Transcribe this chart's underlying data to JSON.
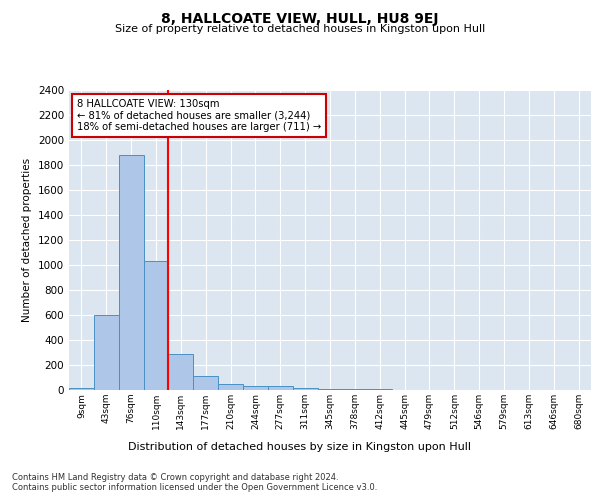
{
  "title": "8, HALLCOATE VIEW, HULL, HU8 9EJ",
  "subtitle": "Size of property relative to detached houses in Kingston upon Hull",
  "xlabel": "Distribution of detached houses by size in Kingston upon Hull",
  "ylabel": "Number of detached properties",
  "footer_line1": "Contains HM Land Registry data © Crown copyright and database right 2024.",
  "footer_line2": "Contains public sector information licensed under the Open Government Licence v3.0.",
  "bin_labels": [
    "9sqm",
    "43sqm",
    "76sqm",
    "110sqm",
    "143sqm",
    "177sqm",
    "210sqm",
    "244sqm",
    "277sqm",
    "311sqm",
    "345sqm",
    "378sqm",
    "412sqm",
    "445sqm",
    "479sqm",
    "512sqm",
    "546sqm",
    "579sqm",
    "613sqm",
    "646sqm",
    "680sqm"
  ],
  "bar_values": [
    20,
    600,
    1880,
    1030,
    290,
    115,
    50,
    35,
    30,
    20,
    10,
    5,
    5,
    3,
    3,
    2,
    2,
    2,
    1,
    1,
    0
  ],
  "bar_color": "#aec6e8",
  "bar_edge_color": "#4a90c4",
  "background_color": "#dce6f0",
  "grid_color": "#ffffff",
  "red_line_x": 3.5,
  "annotation_text": "8 HALLCOATE VIEW: 130sqm\n← 81% of detached houses are smaller (3,244)\n18% of semi-detached houses are larger (711) →",
  "annotation_box_color": "#ffffff",
  "annotation_box_edge_color": "#cc0000",
  "fig_bg_color": "#ffffff",
  "ylim": [
    0,
    2400
  ],
  "yticks": [
    0,
    200,
    400,
    600,
    800,
    1000,
    1200,
    1400,
    1600,
    1800,
    2000,
    2200,
    2400
  ]
}
